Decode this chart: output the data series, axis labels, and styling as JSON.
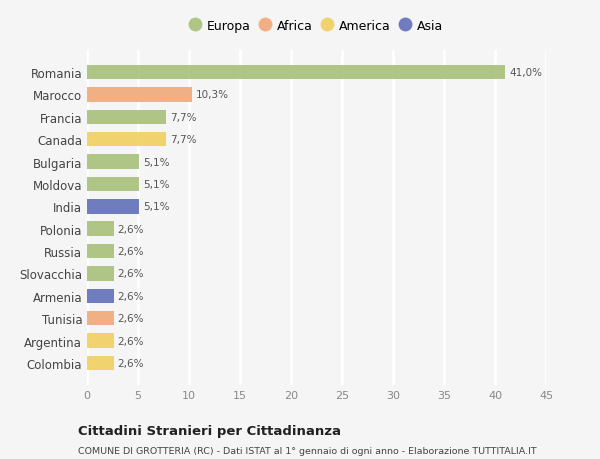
{
  "countries": [
    "Romania",
    "Marocco",
    "Francia",
    "Canada",
    "Bulgaria",
    "Moldova",
    "India",
    "Polonia",
    "Russia",
    "Slovacchia",
    "Armenia",
    "Tunisia",
    "Argentina",
    "Colombia"
  ],
  "values": [
    41.0,
    10.3,
    7.7,
    7.7,
    5.1,
    5.1,
    5.1,
    2.6,
    2.6,
    2.6,
    2.6,
    2.6,
    2.6,
    2.6
  ],
  "labels": [
    "41,0%",
    "10,3%",
    "7,7%",
    "7,7%",
    "5,1%",
    "5,1%",
    "5,1%",
    "2,6%",
    "2,6%",
    "2,6%",
    "2,6%",
    "2,6%",
    "2,6%",
    "2,6%"
  ],
  "colors": [
    "#a8c07a",
    "#f0a878",
    "#a8c07a",
    "#f0d060",
    "#a8c07a",
    "#a8c07a",
    "#6070b8",
    "#a8c07a",
    "#a8c07a",
    "#a8c07a",
    "#6070b8",
    "#f0a878",
    "#f0d060",
    "#f0d060"
  ],
  "categories": [
    "Europa",
    "Africa",
    "America",
    "Asia"
  ],
  "legend_colors": [
    "#a8c07a",
    "#f0a878",
    "#f0d060",
    "#6070b8"
  ],
  "title": "Cittadini Stranieri per Cittadinanza",
  "subtitle": "COMUNE DI GROTTERIA (RC) - Dati ISTAT al 1° gennaio di ogni anno - Elaborazione TUTTITALIA.IT",
  "xlim": [
    0,
    45
  ],
  "xticks": [
    0,
    5,
    10,
    15,
    20,
    25,
    30,
    35,
    40,
    45
  ],
  "background_color": "#f5f5f5",
  "grid_color": "#ffffff",
  "bar_height": 0.65
}
